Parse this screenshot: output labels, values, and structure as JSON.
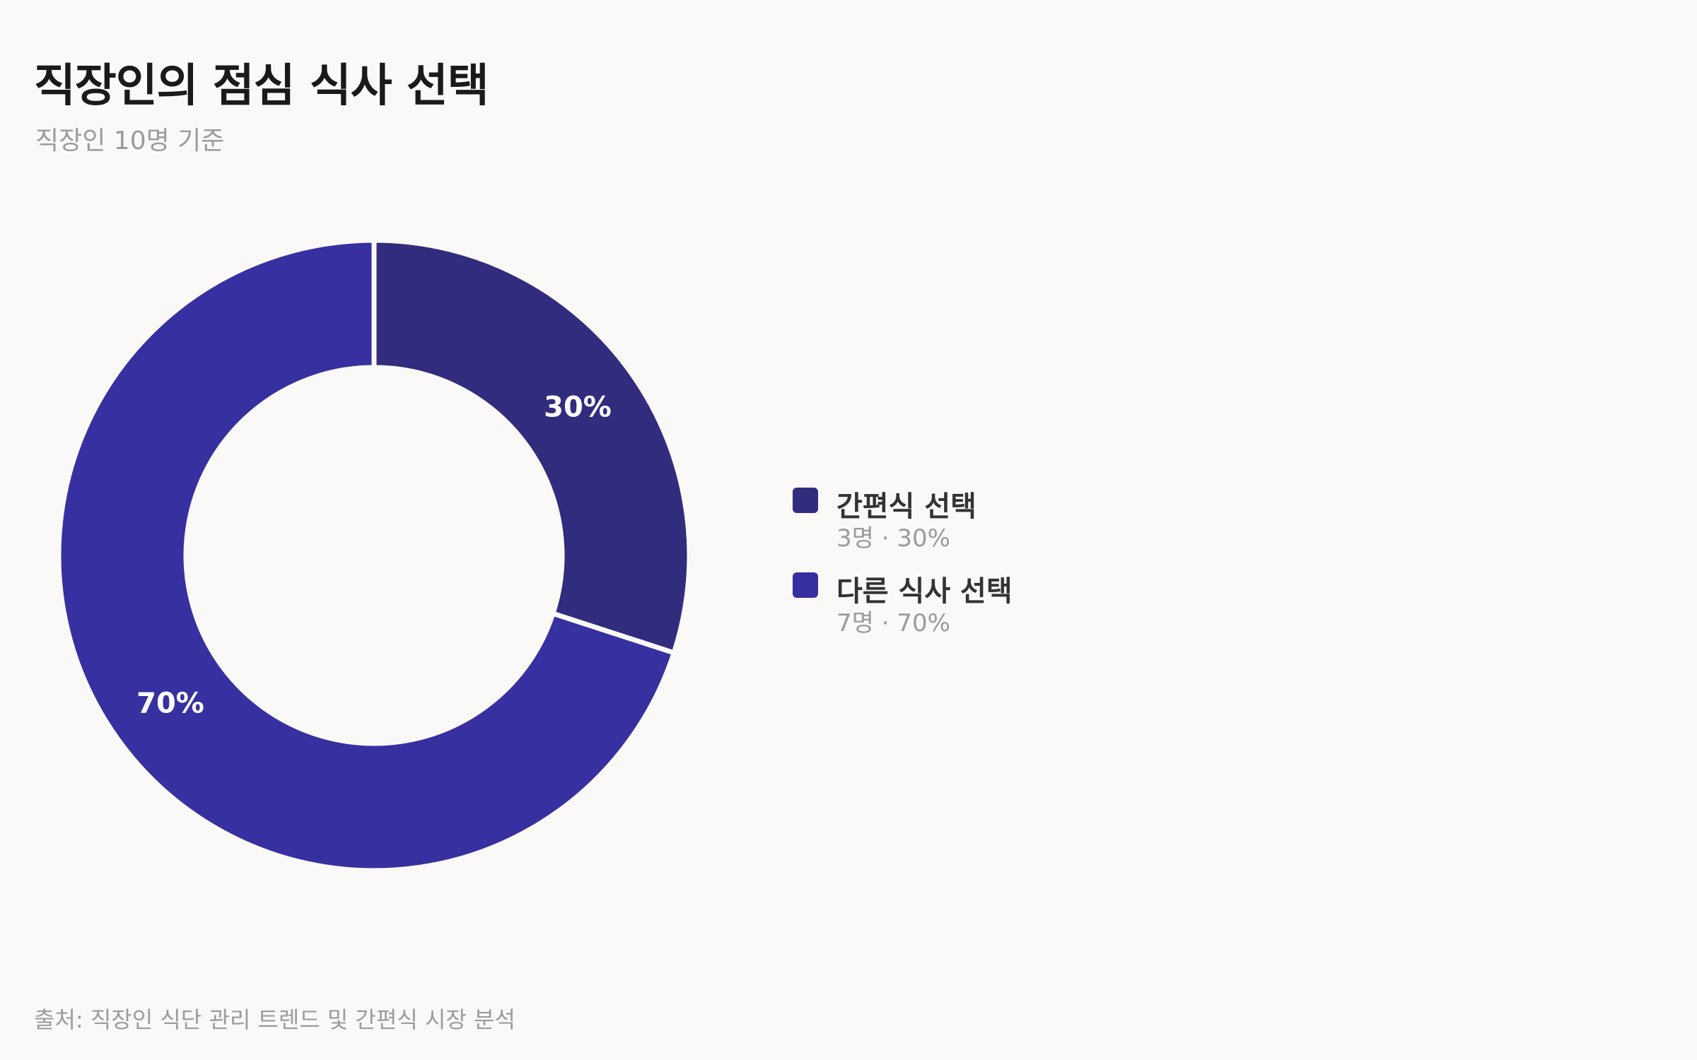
{
  "header": {
    "title": "직장인의 점심 식사 선택",
    "subtitle": "직장인 10명 기준"
  },
  "chart_data": {
    "type": "pie",
    "donut": true,
    "title": "직장인의 점심 식사 선택",
    "subtitle": "직장인 10명 기준",
    "categories": [
      "간편식 선택",
      "다른 식사 선택"
    ],
    "counts": [
      3,
      7
    ],
    "values": [
      30,
      70
    ],
    "unit": "%",
    "colors": [
      "#312c7e",
      "#3730a0"
    ],
    "slice_labels": [
      "30%",
      "70%"
    ],
    "legend_position": "right"
  },
  "legend": {
    "items": [
      {
        "label": "간편식 선택",
        "detail": "3명 · 30%",
        "color": "#312c7e"
      },
      {
        "label": "다른 식사 선택",
        "detail": "7명 · 70%",
        "color": "#3730a0"
      }
    ]
  },
  "footer": {
    "source": "출처: 직장인 식단 관리 트렌드 및 간편식 시장 분석"
  }
}
